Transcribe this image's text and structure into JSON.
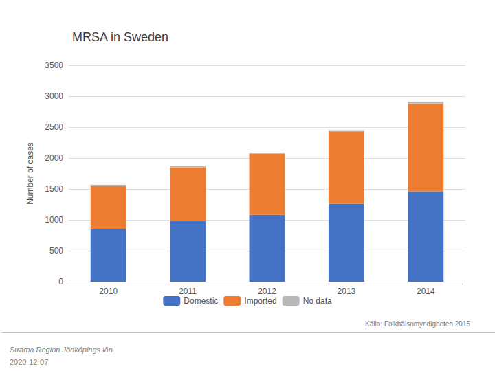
{
  "chart_data": {
    "type": "bar",
    "stacked": true,
    "title": "MRSA in Sweden",
    "categories": [
      "2010",
      "2011",
      "2012",
      "2013",
      "2014"
    ],
    "series": [
      {
        "name": "Domestic",
        "color": "#4472C4",
        "values": [
          850,
          980,
          1080,
          1260,
          1460
        ]
      },
      {
        "name": "Imported",
        "color": "#ED7D31",
        "values": [
          700,
          870,
          990,
          1170,
          1420
        ]
      },
      {
        "name": "No data",
        "color": "#B8B8B8",
        "values": [
          20,
          20,
          20,
          20,
          30
        ]
      }
    ],
    "ylabel": "Number of cases",
    "ylim": [
      0,
      3500
    ],
    "yticks": [
      0,
      500,
      1000,
      1500,
      2000,
      2500,
      3000,
      3500
    ],
    "grid": true,
    "legend": "bottom",
    "annotations": [
      "Källa: Folkhälsomyndigheten 2015",
      "Strama Region Jönköpings län",
      "2020-12-07"
    ]
  }
}
